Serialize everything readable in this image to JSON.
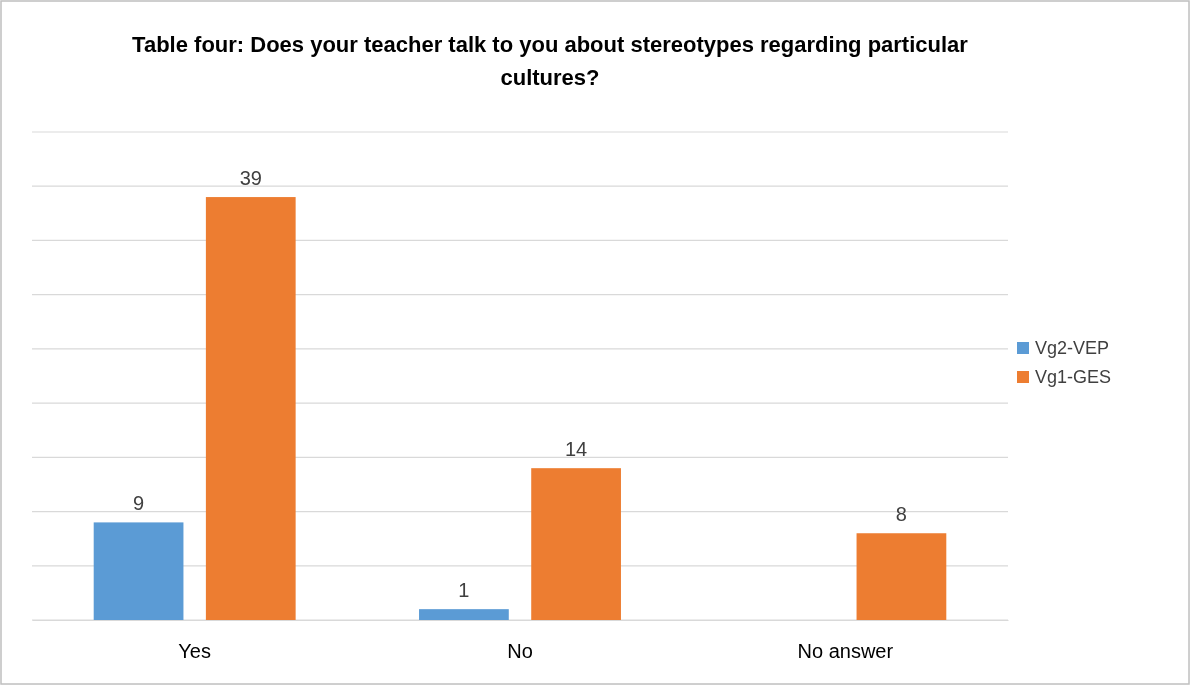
{
  "chart_data": {
    "type": "bar",
    "title": "Table four: Does your teacher talk to you about stereotypes regarding particular cultures?",
    "categories": [
      "Yes",
      "No",
      "No answer"
    ],
    "series": [
      {
        "name": "Vg2-VEP",
        "color": "#5b9bd5",
        "values": [
          9,
          1,
          null
        ]
      },
      {
        "name": "Vg1-GES",
        "color": "#ed7d31",
        "values": [
          39,
          14,
          8
        ]
      }
    ],
    "ylim": [
      0,
      45
    ],
    "yticks": [
      {
        "value": 0,
        "label": null
      },
      {
        "value": 5,
        "label": null
      },
      {
        "value": 10,
        "label": null
      },
      {
        "value": 15,
        "label": null
      },
      {
        "value": 20,
        "label": null
      },
      {
        "value": 25,
        "label": null
      },
      {
        "value": 30,
        "label": null
      },
      {
        "value": 35,
        "label": null
      },
      {
        "value": 40,
        "label": null
      },
      {
        "value": 45,
        "label": null
      }
    ],
    "tick_labels": "x",
    "grid": "y",
    "legend": "right",
    "data_labels": true
  }
}
